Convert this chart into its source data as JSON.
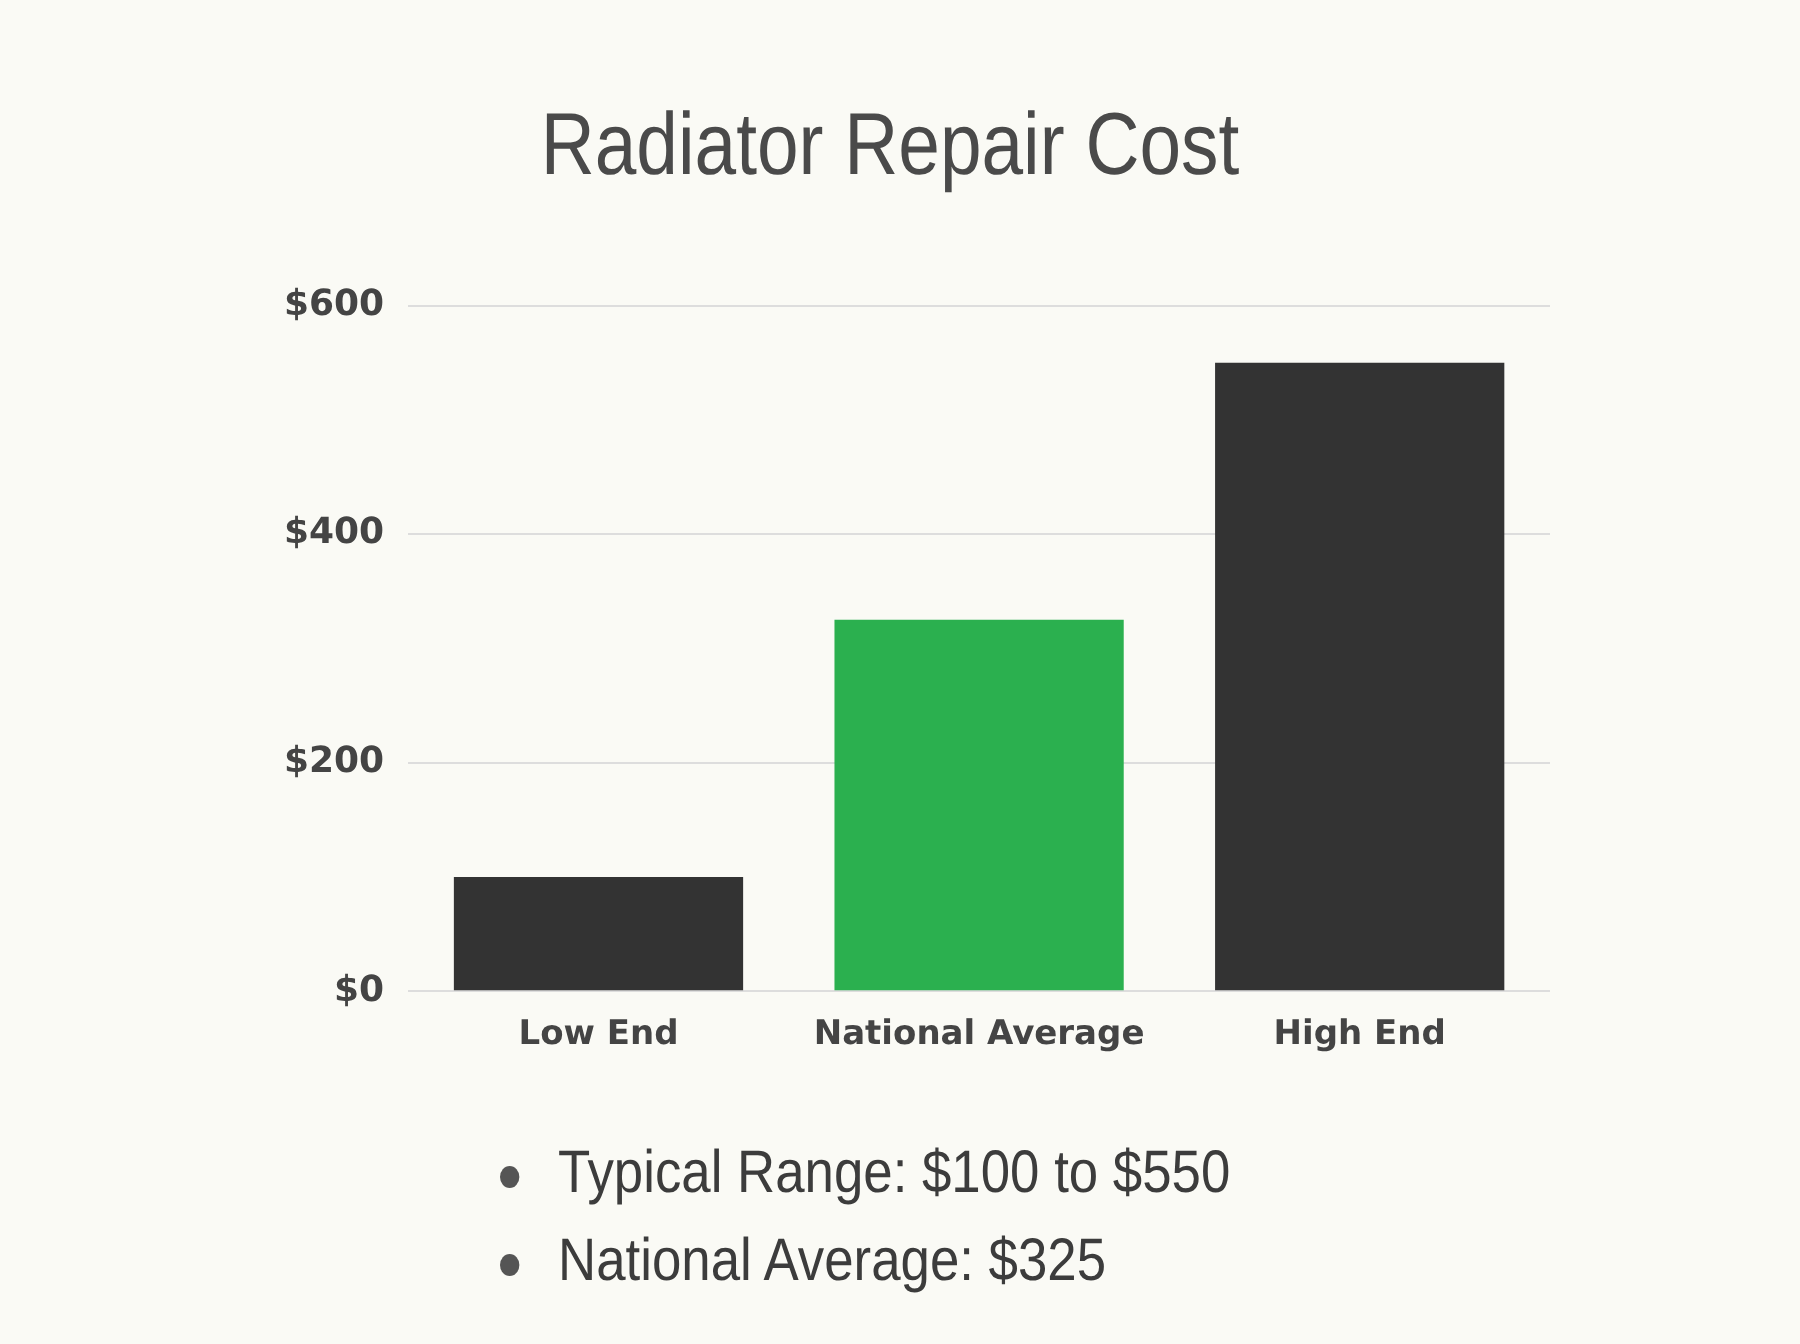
{
  "chart_data": {
    "type": "bar",
    "title": "Radiator Repair Cost",
    "categories": [
      "Low End",
      "National Average",
      "High End"
    ],
    "values": [
      100,
      325,
      550
    ],
    "colors": [
      "#333333",
      "#2bb04f",
      "#333333"
    ],
    "ylim": [
      0,
      600
    ],
    "yticks": [
      {
        "value": 0,
        "label": "$0"
      },
      {
        "value": 200,
        "label": "$200"
      },
      {
        "value": 400,
        "label": "$400"
      },
      {
        "value": 600,
        "label": "$600"
      }
    ],
    "grid": "y",
    "legend": false,
    "annotations": [
      "Typical Range: $100 to $550",
      "National Average: $325"
    ]
  }
}
